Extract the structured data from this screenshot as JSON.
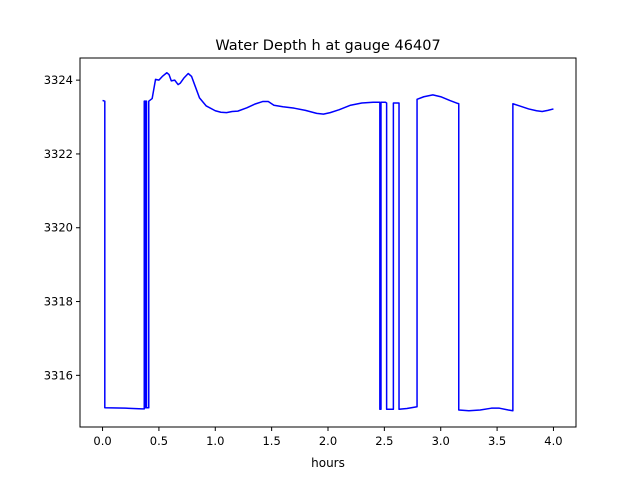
{
  "chart_data": {
    "type": "line",
    "title": "Water Depth h at gauge 46407",
    "xlabel": "hours",
    "ylabel": "",
    "xlim": [
      -0.2,
      4.2
    ],
    "ylim": [
      3314.6,
      3324.6
    ],
    "xticks": [
      0.0,
      0.5,
      1.0,
      1.5,
      2.0,
      2.5,
      3.0,
      3.5,
      4.0
    ],
    "xtick_labels": [
      "0.0",
      "0.5",
      "1.0",
      "1.5",
      "2.0",
      "2.5",
      "3.0",
      "3.5",
      "4.0"
    ],
    "yticks": [
      3316,
      3318,
      3320,
      3322,
      3324
    ],
    "ytick_labels": [
      "3316",
      "3318",
      "3320",
      "3322",
      "3324"
    ],
    "grid": false,
    "series": [
      {
        "color": "#0000ff",
        "points": [
          [
            0.0,
            3323.45
          ],
          [
            0.02,
            3323.43
          ],
          [
            0.02,
            3315.12
          ],
          [
            0.2,
            3315.11
          ],
          [
            0.35,
            3315.09
          ],
          [
            0.37,
            3315.09
          ],
          [
            0.37,
            3323.43
          ],
          [
            0.38,
            3323.43
          ],
          [
            0.38,
            3315.12
          ],
          [
            0.385,
            3315.12
          ],
          [
            0.385,
            3323.43
          ],
          [
            0.39,
            3323.43
          ],
          [
            0.39,
            3315.12
          ],
          [
            0.41,
            3315.12
          ],
          [
            0.41,
            3323.43
          ],
          [
            0.44,
            3323.5
          ],
          [
            0.47,
            3324.02
          ],
          [
            0.5,
            3324.0
          ],
          [
            0.53,
            3324.1
          ],
          [
            0.57,
            3324.2
          ],
          [
            0.59,
            3324.15
          ],
          [
            0.61,
            3323.98
          ],
          [
            0.64,
            3324.0
          ],
          [
            0.67,
            3323.88
          ],
          [
            0.69,
            3323.92
          ],
          [
            0.72,
            3324.05
          ],
          [
            0.76,
            3324.18
          ],
          [
            0.79,
            3324.1
          ],
          [
            0.82,
            3323.85
          ],
          [
            0.86,
            3323.52
          ],
          [
            0.92,
            3323.3
          ],
          [
            1.0,
            3323.17
          ],
          [
            1.05,
            3323.13
          ],
          [
            1.1,
            3323.12
          ],
          [
            1.15,
            3323.15
          ],
          [
            1.2,
            3323.16
          ],
          [
            1.28,
            3323.25
          ],
          [
            1.35,
            3323.35
          ],
          [
            1.42,
            3323.42
          ],
          [
            1.47,
            3323.42
          ],
          [
            1.52,
            3323.32
          ],
          [
            1.6,
            3323.28
          ],
          [
            1.7,
            3323.24
          ],
          [
            1.8,
            3323.18
          ],
          [
            1.9,
            3323.1
          ],
          [
            1.96,
            3323.08
          ],
          [
            2.02,
            3323.12
          ],
          [
            2.1,
            3323.2
          ],
          [
            2.2,
            3323.32
          ],
          [
            2.3,
            3323.38
          ],
          [
            2.4,
            3323.4
          ],
          [
            2.46,
            3323.4
          ],
          [
            2.46,
            3315.08
          ],
          [
            2.47,
            3315.08
          ],
          [
            2.47,
            3323.4
          ],
          [
            2.51,
            3323.4
          ],
          [
            2.52,
            3323.38
          ],
          [
            2.52,
            3315.08
          ],
          [
            2.58,
            3315.08
          ],
          [
            2.58,
            3323.38
          ],
          [
            2.63,
            3323.38
          ],
          [
            2.63,
            3315.08
          ],
          [
            2.7,
            3315.1
          ],
          [
            2.79,
            3315.15
          ],
          [
            2.79,
            3323.48
          ],
          [
            2.85,
            3323.55
          ],
          [
            2.93,
            3323.6
          ],
          [
            3.0,
            3323.55
          ],
          [
            3.08,
            3323.45
          ],
          [
            3.15,
            3323.37
          ],
          [
            3.16,
            3323.36
          ],
          [
            3.16,
            3315.06
          ],
          [
            3.25,
            3315.04
          ],
          [
            3.35,
            3315.06
          ],
          [
            3.45,
            3315.11
          ],
          [
            3.52,
            3315.11
          ],
          [
            3.6,
            3315.06
          ],
          [
            3.64,
            3315.04
          ],
          [
            3.64,
            3323.36
          ],
          [
            3.7,
            3323.3
          ],
          [
            3.78,
            3323.22
          ],
          [
            3.85,
            3323.17
          ],
          [
            3.9,
            3323.15
          ],
          [
            3.95,
            3323.18
          ],
          [
            4.0,
            3323.22
          ]
        ]
      }
    ]
  }
}
